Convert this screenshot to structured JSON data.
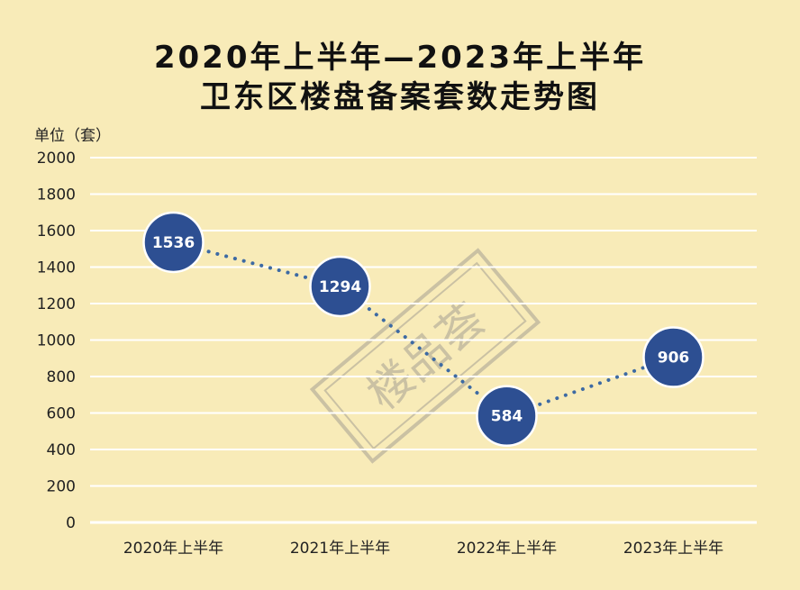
{
  "chart_data": {
    "type": "line",
    "title": "2020年上半年—2023年上半年",
    "subtitle": "卫东区楼盘备案套数走势图",
    "ylabel": "单位（套）",
    "xlabel": "",
    "categories": [
      "2020年上半年",
      "2021年上半年",
      "2022年上半年",
      "2023年上半年"
    ],
    "series": [
      {
        "values": [
          1536,
          1294,
          584,
          906
        ]
      }
    ],
    "ylim": [
      0,
      2000
    ],
    "yticks": [
      0,
      200,
      400,
      600,
      800,
      1000,
      1200,
      1400,
      1600,
      1800,
      2000
    ],
    "grid": true,
    "line_style": "dotted",
    "data_labels": [
      "1536",
      "1294",
      "584",
      "906"
    ],
    "colors": {
      "marker": "#2d4f92",
      "line": "#3d6aa3",
      "grid": "#ffffff",
      "background": "#f8ebb8"
    },
    "watermark": "楼品荟"
  }
}
